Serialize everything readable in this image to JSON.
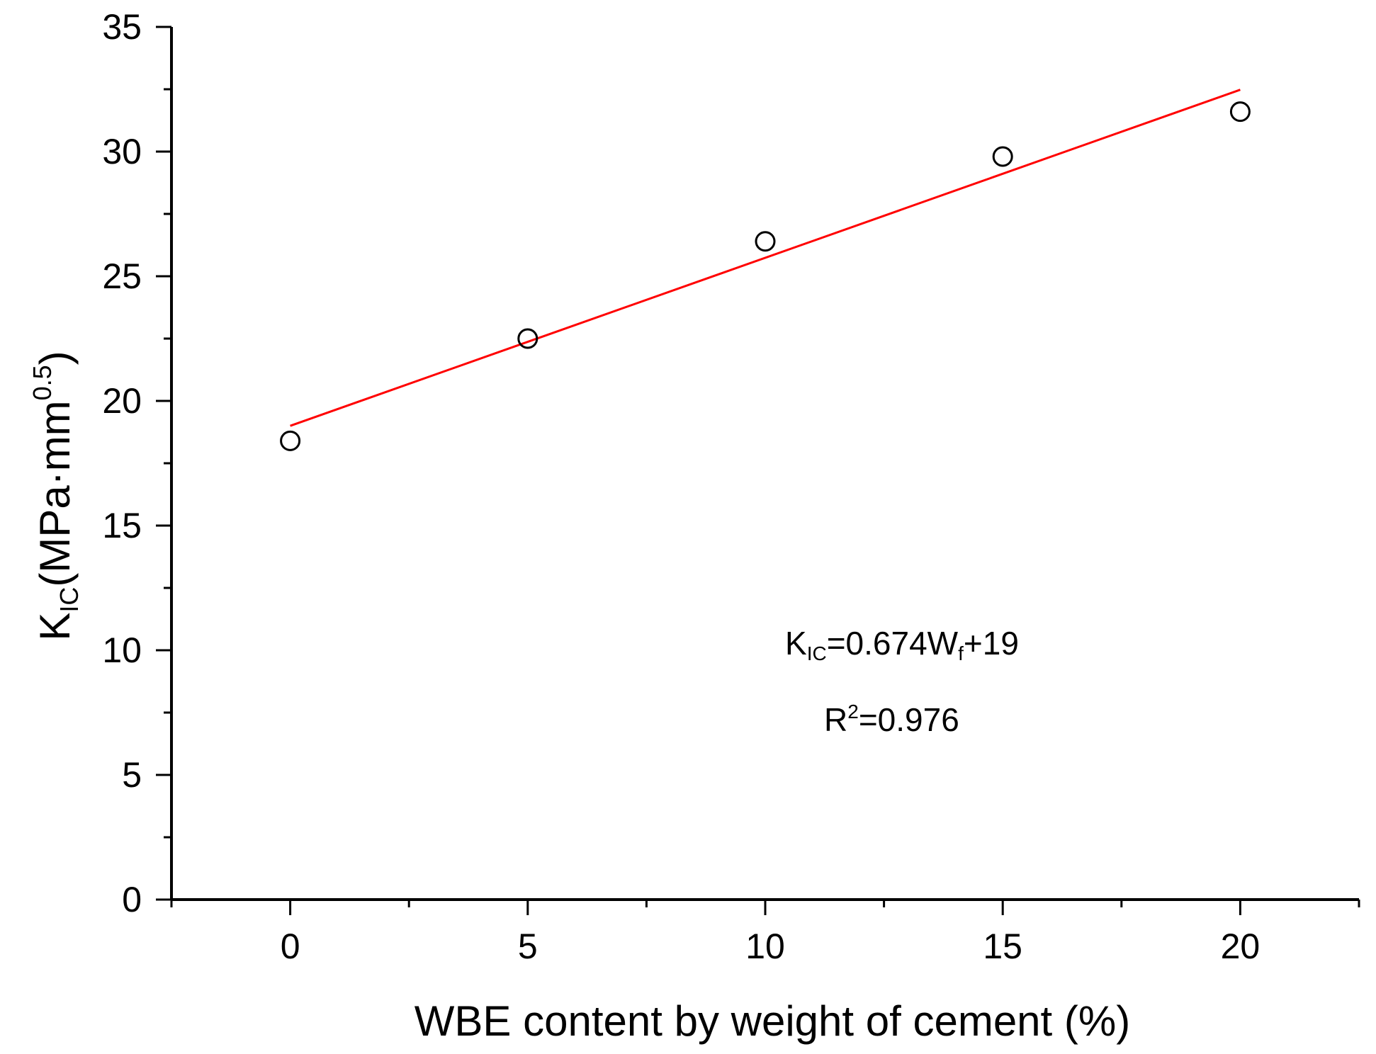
{
  "chart_data": {
    "type": "scatter",
    "title": "",
    "x": [
      0,
      5,
      10,
      15,
      20
    ],
    "y": [
      18.4,
      22.5,
      26.4,
      29.8,
      31.6
    ],
    "xlim": [
      -2.5,
      22.5
    ],
    "ylim": [
      0,
      35
    ],
    "xticks": [
      0,
      5,
      10,
      15,
      20
    ],
    "yticks": [
      0,
      5,
      10,
      15,
      20,
      25,
      30,
      35
    ],
    "xlabel": "WBE content by weight of cement (%)",
    "ylabel": {
      "main": "K",
      "sub": "IC",
      "unit": "(MPa·mm",
      "sup": "0.5",
      "close": ")"
    },
    "fit": {
      "slope": 0.674,
      "intercept": 19,
      "x_range": [
        0,
        20
      ],
      "color": "#ff0000"
    },
    "annotations": {
      "equation": {
        "k": "K",
        "k_sub": "IC",
        "mid": "=0.674W",
        "w_sub": "f",
        "tail": "+19"
      },
      "r2": {
        "r": "R",
        "sup": "2",
        "tail": "=0.976"
      }
    },
    "marker_style": "open-circle",
    "grid": false,
    "legend": "none"
  }
}
